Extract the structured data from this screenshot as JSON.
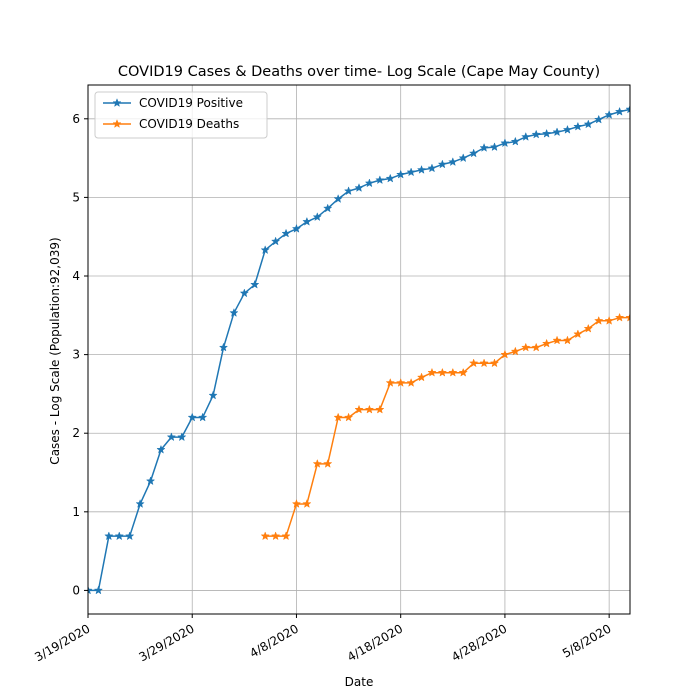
{
  "chart_data": {
    "type": "line",
    "title": "COVID19 Cases & Deaths over time- Log Scale (Cape May County)",
    "xlabel": "Date",
    "ylabel": "Cases - Log Scale (Population:92,039)",
    "xlim": [
      0,
      52
    ],
    "ylim": [
      -0.3,
      6.43
    ],
    "grid": true,
    "legend_position": "top-left",
    "x_ticks": [
      {
        "x": 0,
        "label": "3/19/2020"
      },
      {
        "x": 10,
        "label": "3/29/2020"
      },
      {
        "x": 20,
        "label": "4/8/2020"
      },
      {
        "x": 30,
        "label": "4/18/2020"
      },
      {
        "x": 40,
        "label": "4/28/2020"
      },
      {
        "x": 50,
        "label": "5/8/2020"
      }
    ],
    "y_ticks": [
      0,
      1,
      2,
      3,
      4,
      5,
      6
    ],
    "series": [
      {
        "name": "COVID19 Positive",
        "color": "#1f77b4",
        "x": [
          0,
          1,
          2,
          3,
          4,
          5,
          6,
          7,
          8,
          9,
          10,
          11,
          12,
          13,
          14,
          15,
          16,
          17,
          18,
          19,
          20,
          21,
          22,
          23,
          24,
          25,
          26,
          27,
          28,
          29,
          30,
          31,
          32,
          33,
          34,
          35,
          36,
          37,
          38,
          39,
          40,
          41,
          42,
          43,
          44,
          45,
          46,
          47,
          48,
          49,
          50,
          51,
          52
        ],
        "values": [
          0.0,
          0.0,
          0.69,
          0.69,
          0.69,
          1.1,
          1.39,
          1.79,
          1.95,
          1.95,
          2.2,
          2.2,
          2.48,
          3.09,
          3.53,
          3.78,
          3.89,
          4.33,
          4.44,
          4.54,
          4.6,
          4.69,
          4.75,
          4.86,
          4.98,
          5.08,
          5.12,
          5.18,
          5.22,
          5.24,
          5.29,
          5.32,
          5.35,
          5.37,
          5.42,
          5.45,
          5.5,
          5.56,
          5.63,
          5.64,
          5.69,
          5.71,
          5.77,
          5.8,
          5.81,
          5.83,
          5.86,
          5.9,
          5.93,
          5.99,
          6.05,
          6.09,
          6.12
        ]
      },
      {
        "name": "COVID19 Deaths",
        "color": "#ff7f0e",
        "x": [
          17,
          18,
          19,
          20,
          21,
          22,
          23,
          24,
          25,
          26,
          27,
          28,
          29,
          30,
          31,
          32,
          33,
          34,
          35,
          36,
          37,
          38,
          39,
          40,
          41,
          42,
          43,
          44,
          45,
          46,
          47,
          48,
          49,
          50,
          51,
          52
        ],
        "values": [
          0.69,
          0.69,
          0.69,
          1.1,
          1.1,
          1.61,
          1.61,
          2.2,
          2.2,
          2.3,
          2.3,
          2.3,
          2.64,
          2.64,
          2.64,
          2.71,
          2.77,
          2.77,
          2.77,
          2.77,
          2.89,
          2.89,
          2.89,
          3.0,
          3.04,
          3.09,
          3.09,
          3.14,
          3.18,
          3.18,
          3.26,
          3.33,
          3.43,
          3.43,
          3.47,
          3.47
        ]
      }
    ]
  }
}
